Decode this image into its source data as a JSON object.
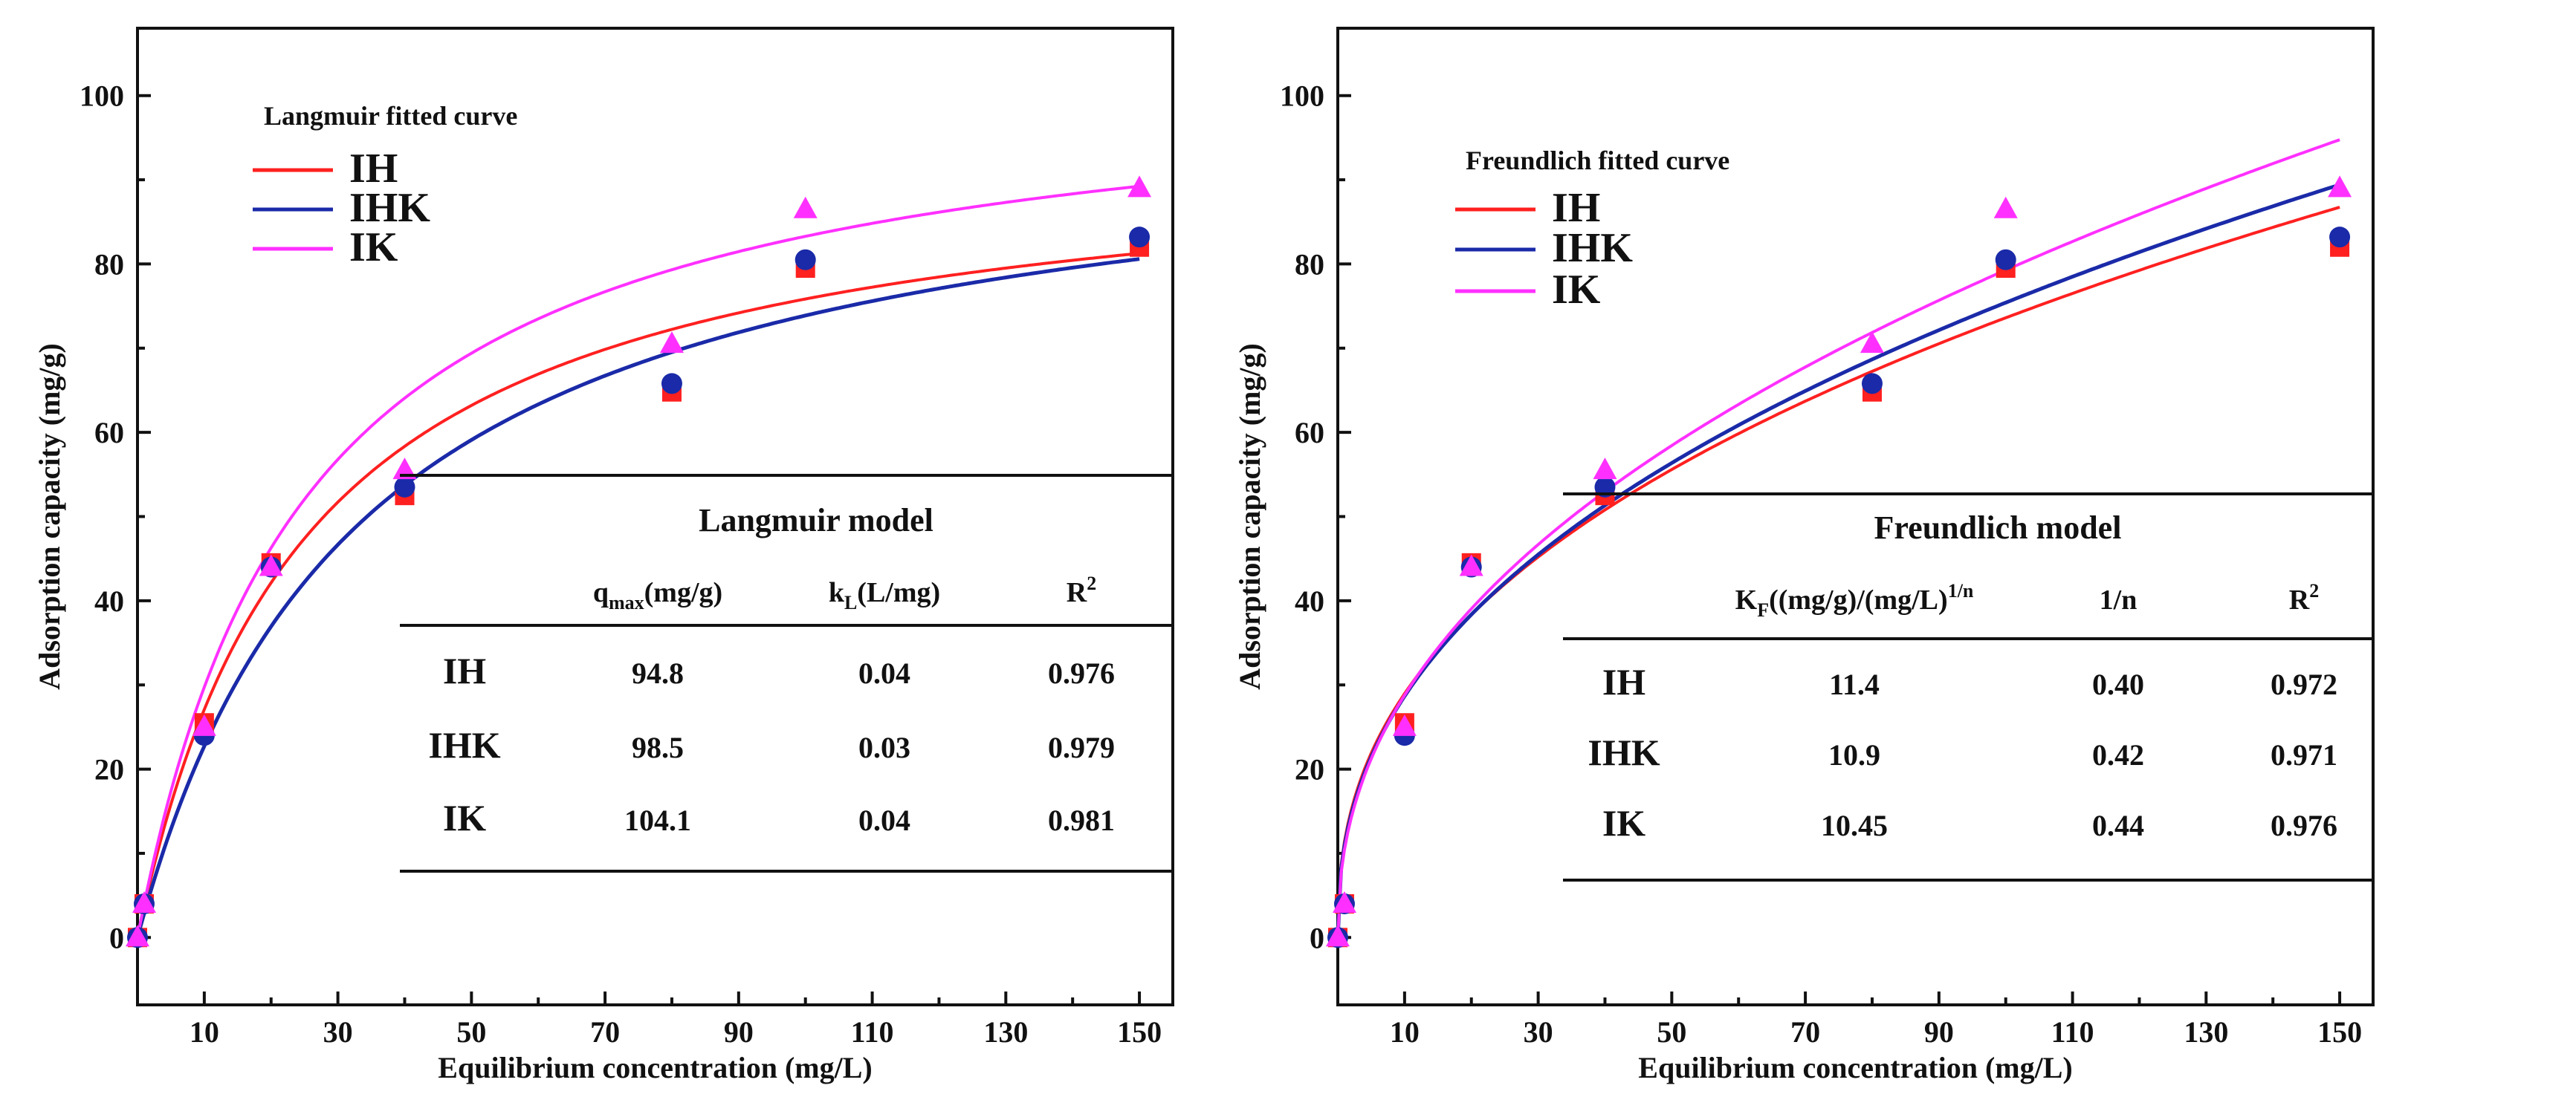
{
  "chart_data": [
    {
      "type": "scatter",
      "title": "",
      "xlabel": "Equilibrium concentration (mg/L)",
      "ylabel": "Adsorption capacity (mg/g)",
      "xlim": [
        0,
        155
      ],
      "ylim": [
        -8,
        108
      ],
      "x_ticks": [
        10,
        30,
        50,
        70,
        90,
        110,
        130,
        150
      ],
      "y_ticks": [
        0,
        20,
        40,
        60,
        80,
        100
      ],
      "legend_title": "Langmuir fitted curve",
      "legend_position": "top-left",
      "x": [
        0,
        1,
        10,
        20,
        40,
        80,
        100,
        150
      ],
      "series": [
        {
          "name": "IH",
          "color": "#ff2020",
          "marker": "square",
          "values": [
            0,
            4,
            25.5,
            44.5,
            52.5,
            64.8,
            79.5,
            82
          ]
        },
        {
          "name": "IHK",
          "color": "#1a2aa8",
          "marker": "circle",
          "values": [
            0,
            4,
            24,
            44,
            53.5,
            65.8,
            80.5,
            83.2
          ]
        },
        {
          "name": "IK",
          "color": "#ff30ff",
          "marker": "triangle",
          "values": [
            0,
            4,
            25,
            44,
            55.5,
            70.5,
            86.5,
            89
          ]
        }
      ],
      "fit": {
        "model": "langmuir",
        "params": [
          {
            "qmax": 94.8,
            "k": 0.04
          },
          {
            "qmax": 98.5,
            "k": 0.03
          },
          {
            "qmax": 104.1,
            "k": 0.04
          }
        ]
      },
      "table": {
        "title": "Langmuir model",
        "headers": [
          "",
          "qmax(mg/g)",
          "kL(L/mg)",
          "R2"
        ],
        "header_parts": [
          {
            "main": "q",
            "sub": "max",
            "rest": "(mg/g)"
          },
          {
            "main": "k",
            "sub": "L",
            "rest": "(L/mg)"
          },
          {
            "main": "R",
            "sup": "2"
          }
        ],
        "rows": [
          [
            "IH",
            "94.8",
            "0.04",
            "0.976"
          ],
          [
            "IHK",
            "98.5",
            "0.03",
            "0.979"
          ],
          [
            "IK",
            "104.1",
            "0.04",
            "0.981"
          ]
        ]
      }
    },
    {
      "type": "scatter",
      "title": "",
      "xlabel": "Equilibrium concentration (mg/L)",
      "ylabel": "Adsorption capacity (mg/g)",
      "xlim": [
        0,
        155
      ],
      "ylim": [
        -8,
        108
      ],
      "x_ticks": [
        10,
        30,
        50,
        70,
        90,
        110,
        130,
        150
      ],
      "y_ticks": [
        0,
        20,
        40,
        60,
        80,
        100
      ],
      "legend_title": "Freundlich fitted curve",
      "legend_position": "top-left",
      "x": [
        0,
        1,
        10,
        20,
        40,
        80,
        100,
        150
      ],
      "series": [
        {
          "name": "IH",
          "color": "#ff2020",
          "marker": "square",
          "values": [
            0,
            4,
            25.5,
            44.5,
            52.5,
            64.8,
            79.5,
            82
          ]
        },
        {
          "name": "IHK",
          "color": "#1a2aa8",
          "marker": "circle",
          "values": [
            0,
            4,
            24,
            44,
            53.5,
            65.8,
            80.5,
            83.2
          ]
        },
        {
          "name": "IK",
          "color": "#ff30ff",
          "marker": "triangle",
          "values": [
            0,
            4,
            25,
            44,
            55.5,
            70.5,
            86.5,
            89
          ]
        }
      ],
      "fit": {
        "model": "freundlich",
        "params": [
          {
            "k": 11.4,
            "n_inv": 0.405
          },
          {
            "k": 10.9,
            "n_inv": 0.42
          },
          {
            "k": 10.45,
            "n_inv": 0.44
          }
        ]
      },
      "table": {
        "title": "Freundlich model",
        "headers": [
          "",
          "KF((mg/g)/(mg/L)1/n",
          "1/n",
          "R2"
        ],
        "header_parts": [
          {
            "main": "K",
            "sub": "F",
            "rest": "((mg/g)/(mg/L)",
            "sup": "1/n"
          },
          {
            "main": "1/n"
          },
          {
            "main": "R",
            "sup": "2"
          }
        ],
        "rows": [
          [
            "IH",
            "11.4",
            "0.40",
            "0.972"
          ],
          [
            "IHK",
            "10.9",
            "0.42",
            "0.971"
          ],
          [
            "IK",
            "10.45",
            "0.44",
            "0.976"
          ]
        ]
      }
    }
  ]
}
